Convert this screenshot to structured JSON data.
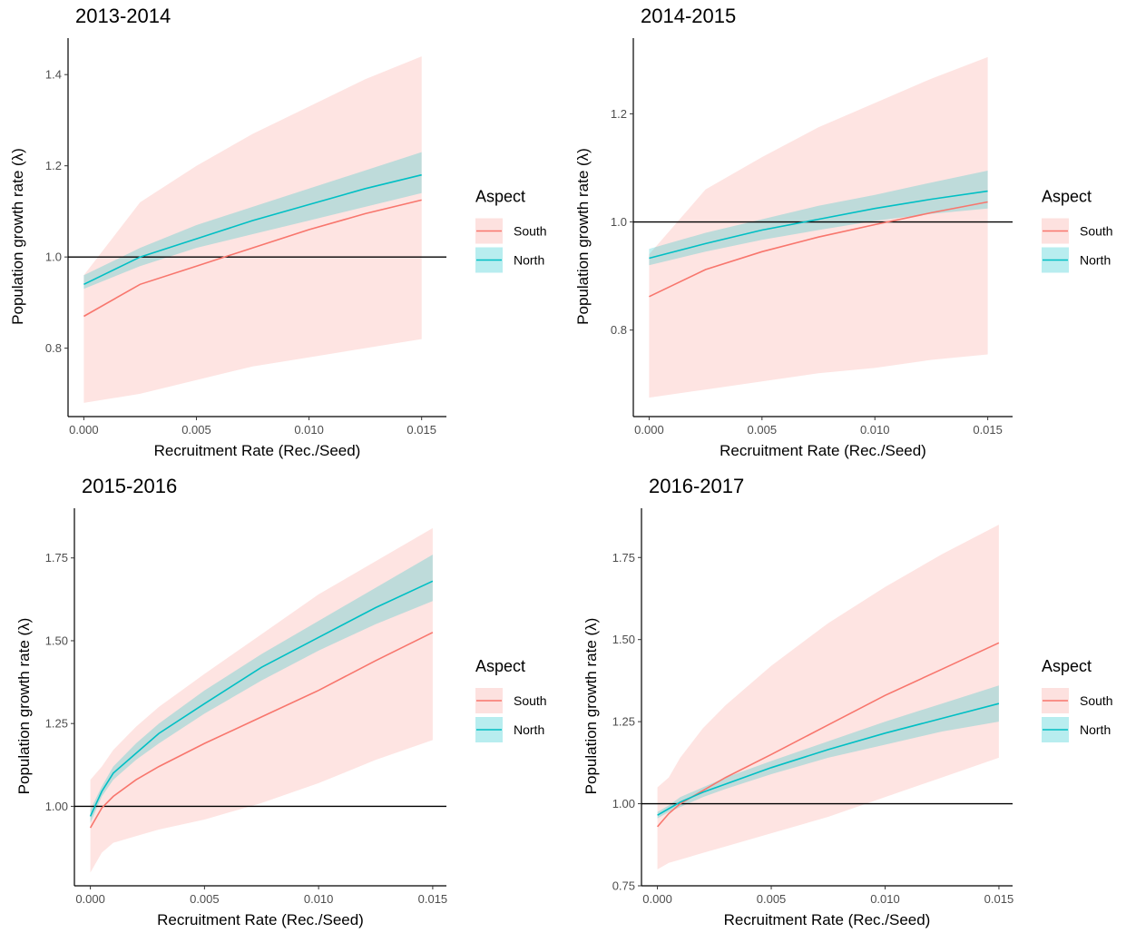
{
  "figure": {
    "background": "#ffffff"
  },
  "colors": {
    "south": "#f8766d",
    "north": "#00bfc4",
    "south_band": "#f8766d",
    "north_band": "#00bfc4",
    "reference_line": "#000000"
  },
  "chart_data": [
    {
      "type": "line",
      "title": "2013-2014",
      "xlabel": "Recruitment Rate (Rec./Seed)",
      "ylabel": "Population growth rate (λ)",
      "xlim": [
        -0.0007,
        0.0161
      ],
      "ylim": [
        0.65,
        1.48
      ],
      "xticks": [
        0.0,
        0.005,
        0.01,
        0.015
      ],
      "xtick_labels": [
        "0.000",
        "0.005",
        "0.010",
        "0.015"
      ],
      "yticks": [
        0.8,
        1.0,
        1.2,
        1.4
      ],
      "ytick_labels": [
        "0.8",
        "1.0",
        "1.2",
        "1.4"
      ],
      "reference_line_y": 1.0,
      "legend": {
        "title": "Aspect",
        "placement": "right",
        "entries": [
          "South",
          "North"
        ]
      },
      "series": [
        {
          "name": "South",
          "x": [
            0.0,
            0.0025,
            0.005,
            0.0075,
            0.01,
            0.0125,
            0.015
          ],
          "y": [
            0.87,
            0.94,
            0.98,
            1.02,
            1.06,
            1.095,
            1.125
          ],
          "lower": [
            0.68,
            0.7,
            0.73,
            0.76,
            0.78,
            0.8,
            0.82
          ],
          "upper": [
            0.96,
            1.12,
            1.2,
            1.27,
            1.33,
            1.39,
            1.44
          ]
        },
        {
          "name": "North",
          "x": [
            0.0,
            0.0025,
            0.005,
            0.0075,
            0.01,
            0.0125,
            0.015
          ],
          "y": [
            0.94,
            1.0,
            1.04,
            1.08,
            1.115,
            1.15,
            1.18
          ],
          "lower": [
            0.93,
            0.98,
            1.02,
            1.05,
            1.08,
            1.11,
            1.14
          ],
          "upper": [
            0.96,
            1.02,
            1.07,
            1.11,
            1.15,
            1.19,
            1.23
          ]
        }
      ]
    },
    {
      "type": "line",
      "title": "2014-2015",
      "xlabel": "Recruitment Rate (Rec./Seed)",
      "ylabel": "Population growth rate (λ)",
      "xlim": [
        -0.0007,
        0.0161
      ],
      "ylim": [
        0.64,
        1.34
      ],
      "xticks": [
        0.0,
        0.005,
        0.01,
        0.015
      ],
      "xtick_labels": [
        "0.000",
        "0.005",
        "0.010",
        "0.015"
      ],
      "yticks": [
        0.8,
        1.0,
        1.2
      ],
      "ytick_labels": [
        "0.8",
        "1.0",
        "1.2"
      ],
      "reference_line_y": 1.0,
      "legend": {
        "title": "Aspect",
        "placement": "right",
        "entries": [
          "South",
          "North"
        ]
      },
      "series": [
        {
          "name": "South",
          "x": [
            0.0,
            0.0025,
            0.005,
            0.0075,
            0.01,
            0.0125,
            0.015
          ],
          "y": [
            0.862,
            0.912,
            0.945,
            0.972,
            0.995,
            1.017,
            1.037
          ],
          "lower": [
            0.675,
            0.69,
            0.705,
            0.72,
            0.73,
            0.745,
            0.755
          ],
          "upper": [
            0.94,
            1.06,
            1.12,
            1.175,
            1.22,
            1.265,
            1.305
          ]
        },
        {
          "name": "North",
          "x": [
            0.0,
            0.0025,
            0.005,
            0.0075,
            0.01,
            0.0125,
            0.015
          ],
          "y": [
            0.933,
            0.96,
            0.985,
            1.005,
            1.025,
            1.042,
            1.057
          ],
          "lower": [
            0.92,
            0.945,
            0.967,
            0.985,
            1.002,
            1.015,
            1.025
          ],
          "upper": [
            0.95,
            0.98,
            1.005,
            1.03,
            1.05,
            1.073,
            1.095
          ]
        }
      ]
    },
    {
      "type": "line",
      "title": "2015-2016",
      "xlabel": "Recruitment Rate (Rec./Seed)",
      "ylabel": "Population growth rate (λ)",
      "xlim": [
        -0.0007,
        0.0156
      ],
      "ylim": [
        0.76,
        1.9
      ],
      "xticks": [
        0.0,
        0.005,
        0.01,
        0.015
      ],
      "xtick_labels": [
        "0.000",
        "0.005",
        "0.010",
        "0.015"
      ],
      "yticks": [
        1.0,
        1.25,
        1.5,
        1.75
      ],
      "ytick_labels": [
        "1.00",
        "1.25",
        "1.50",
        "1.75"
      ],
      "reference_line_y": 1.0,
      "legend": {
        "title": "Aspect",
        "placement": "right",
        "entries": [
          "South",
          "North"
        ]
      },
      "series": [
        {
          "name": "South",
          "x": [
            0.0,
            0.0005,
            0.001,
            0.002,
            0.003,
            0.005,
            0.0075,
            0.01,
            0.0125,
            0.015
          ],
          "y": [
            0.935,
            0.995,
            1.03,
            1.08,
            1.12,
            1.19,
            1.27,
            1.35,
            1.44,
            1.525
          ],
          "lower": [
            0.8,
            0.86,
            0.89,
            0.91,
            0.93,
            0.96,
            1.01,
            1.07,
            1.14,
            1.2
          ],
          "upper": [
            1.08,
            1.12,
            1.17,
            1.24,
            1.3,
            1.4,
            1.52,
            1.64,
            1.74,
            1.84
          ]
        },
        {
          "name": "North",
          "x": [
            0.0,
            0.0005,
            0.001,
            0.002,
            0.003,
            0.005,
            0.0075,
            0.01,
            0.0125,
            0.015
          ],
          "y": [
            0.97,
            1.045,
            1.1,
            1.16,
            1.22,
            1.31,
            1.42,
            1.51,
            1.6,
            1.68
          ],
          "lower": [
            0.95,
            1.03,
            1.08,
            1.14,
            1.19,
            1.28,
            1.38,
            1.47,
            1.55,
            1.62
          ],
          "upper": [
            0.99,
            1.06,
            1.12,
            1.19,
            1.25,
            1.35,
            1.46,
            1.56,
            1.66,
            1.76
          ]
        }
      ]
    },
    {
      "type": "line",
      "title": "2016-2017",
      "xlabel": "Recruitment Rate (Rec./Seed)",
      "ylabel": "Population growth rate (λ)",
      "xlim": [
        -0.0007,
        0.0156
      ],
      "ylim": [
        0.75,
        1.9
      ],
      "xticks": [
        0.0,
        0.005,
        0.01,
        0.015
      ],
      "xtick_labels": [
        "0.000",
        "0.005",
        "0.010",
        "0.015"
      ],
      "yticks": [
        0.75,
        1.0,
        1.25,
        1.5,
        1.75
      ],
      "ytick_labels": [
        "0.75",
        "1.00",
        "1.25",
        "1.50",
        "1.75"
      ],
      "reference_line_y": 1.0,
      "legend": {
        "title": "Aspect",
        "placement": "right",
        "entries": [
          "South",
          "North"
        ]
      },
      "series": [
        {
          "name": "South",
          "x": [
            0.0,
            0.0005,
            0.001,
            0.002,
            0.003,
            0.005,
            0.0075,
            0.01,
            0.0125,
            0.015
          ],
          "y": [
            0.93,
            0.97,
            1.0,
            1.04,
            1.08,
            1.15,
            1.24,
            1.33,
            1.41,
            1.49
          ],
          "lower": [
            0.8,
            0.82,
            0.83,
            0.85,
            0.87,
            0.91,
            0.96,
            1.02,
            1.08,
            1.14
          ],
          "upper": [
            1.05,
            1.08,
            1.14,
            1.23,
            1.3,
            1.42,
            1.55,
            1.66,
            1.76,
            1.85
          ]
        },
        {
          "name": "North",
          "x": [
            0.0,
            0.0005,
            0.001,
            0.002,
            0.003,
            0.005,
            0.0075,
            0.01,
            0.0125,
            0.015
          ],
          "y": [
            0.965,
            0.985,
            1.005,
            1.035,
            1.06,
            1.11,
            1.165,
            1.215,
            1.26,
            1.305
          ],
          "lower": [
            0.955,
            0.975,
            0.99,
            1.02,
            1.045,
            1.09,
            1.14,
            1.18,
            1.22,
            1.25
          ],
          "upper": [
            0.975,
            0.995,
            1.02,
            1.05,
            1.08,
            1.13,
            1.19,
            1.25,
            1.305,
            1.36
          ]
        }
      ]
    }
  ]
}
